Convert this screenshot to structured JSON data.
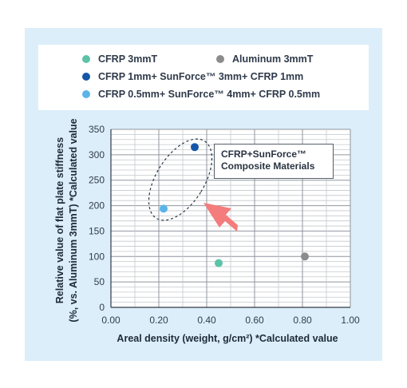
{
  "colors": {
    "panel_bg": "#dbeefa",
    "arrow": "#f47c7c"
  },
  "legend": {
    "items": [
      {
        "label": "CFRP 3mmT",
        "color": "#5cc3a8"
      },
      {
        "label": "Aluminum 3mmT",
        "color": "#8c8c8c"
      },
      {
        "label": "CFRP 1mm+ SunForce™ 3mm+ CFRP 1mm",
        "color": "#1556a8"
      },
      {
        "label": "CFRP 0.5mm+ SunForce™ 4mm+ CFRP 0.5mm",
        "color": "#5ab4ea"
      }
    ]
  },
  "annotation": {
    "line1": "CFRP+SunForce™",
    "line2": "Composite Materials"
  },
  "chart_data": {
    "type": "scatter",
    "title": "",
    "xlabel": "Areal density (weight, g/cm²)  *Calculated value",
    "ylabel_line1": "Relative value of flat plate stiffness",
    "ylabel_line2": "(%, vs. Aluminum 3mmT) *Calculated value",
    "xlim": [
      0,
      1.0
    ],
    "ylim": [
      0,
      350
    ],
    "x_ticks": [
      0,
      0.2,
      0.4,
      0.6,
      0.8,
      1.0
    ],
    "x_tick_labels": [
      "0.00",
      "0.20",
      "0.40",
      "0.60",
      "0.80",
      "1.00"
    ],
    "y_ticks": [
      0,
      50,
      100,
      150,
      200,
      250,
      300,
      350
    ],
    "y_tick_labels": [
      "0",
      "50",
      "100",
      "150",
      "200",
      "250",
      "300",
      "350"
    ],
    "grid": true,
    "legend_position": "top",
    "series": [
      {
        "name": "CFRP 3mmT",
        "color": "#5cc3a8",
        "points": [
          {
            "x": 0.45,
            "y": 87
          }
        ]
      },
      {
        "name": "Aluminum 3mmT",
        "color": "#8c8c8c",
        "points": [
          {
            "x": 0.81,
            "y": 100
          }
        ]
      },
      {
        "name": "CFRP 1mm+ SunForce™ 3mm+ CFRP 1mm",
        "color": "#1556a8",
        "points": [
          {
            "x": 0.35,
            "y": 315
          }
        ]
      },
      {
        "name": "CFRP 0.5mm+ SunForce™ 4mm+ CFRP 0.5mm",
        "color": "#5ab4ea",
        "points": [
          {
            "x": 0.22,
            "y": 194
          }
        ]
      }
    ]
  }
}
